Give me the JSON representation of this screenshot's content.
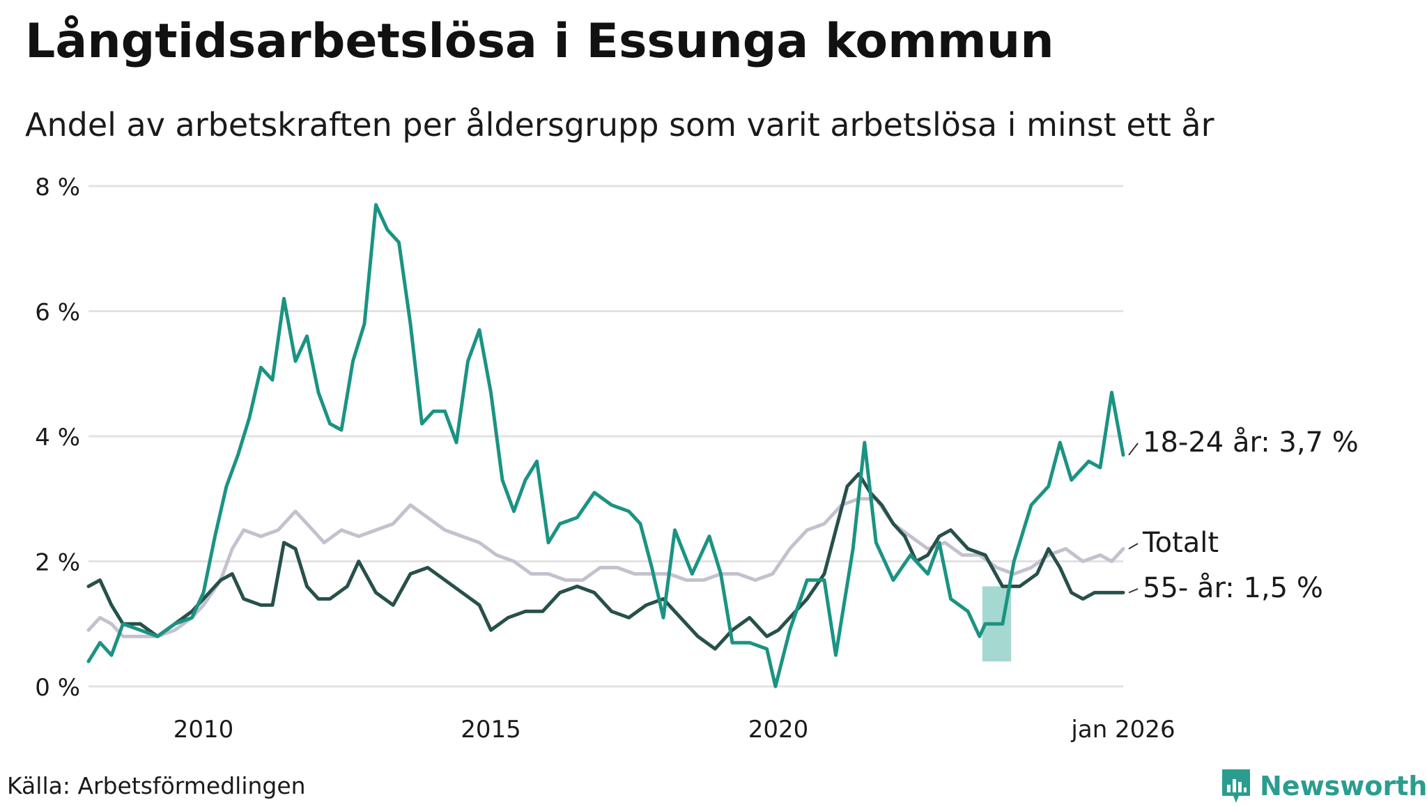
{
  "title": "Långtidsarbetslösa i Essunga kommun",
  "subtitle": "Andel av arbetskraften per åldersgrupp som varit arbetslösa i minst ett år",
  "source": "Källa: Arbetsförmedlingen",
  "brand": {
    "name": "Newsworthy",
    "icon": "bar-chart-icon",
    "color": "#2a9d8f"
  },
  "chart_data": {
    "type": "line",
    "title": "Långtidsarbetslösa i Essunga kommun",
    "xlabel": "",
    "ylabel": "",
    "ylim": [
      0,
      8
    ],
    "xlim": [
      2008.0,
      2026.0
    ],
    "yticks": [
      0,
      2,
      4,
      6,
      8
    ],
    "ytick_labels": [
      "0 %",
      "2 %",
      "4 %",
      "6 %",
      "8 %"
    ],
    "xticks": [
      2010,
      2015,
      2020,
      2026
    ],
    "xtick_labels": [
      "2010",
      "2015",
      "2020",
      "jan 2026"
    ],
    "grid": true,
    "series": [
      {
        "name": "Totalt",
        "label": "Totalt",
        "color": "#c4c1cf",
        "points": [
          [
            2008.0,
            0.9
          ],
          [
            2008.2,
            1.1
          ],
          [
            2008.4,
            1.0
          ],
          [
            2008.6,
            0.8
          ],
          [
            2008.9,
            0.8
          ],
          [
            2009.2,
            0.8
          ],
          [
            2009.5,
            0.9
          ],
          [
            2009.8,
            1.1
          ],
          [
            2010.0,
            1.3
          ],
          [
            2010.3,
            1.7
          ],
          [
            2010.5,
            2.2
          ],
          [
            2010.7,
            2.5
          ],
          [
            2011.0,
            2.4
          ],
          [
            2011.3,
            2.5
          ],
          [
            2011.6,
            2.8
          ],
          [
            2011.9,
            2.5
          ],
          [
            2012.1,
            2.3
          ],
          [
            2012.4,
            2.5
          ],
          [
            2012.7,
            2.4
          ],
          [
            2013.0,
            2.5
          ],
          [
            2013.3,
            2.6
          ],
          [
            2013.6,
            2.9
          ],
          [
            2013.9,
            2.7
          ],
          [
            2014.2,
            2.5
          ],
          [
            2014.5,
            2.4
          ],
          [
            2014.8,
            2.3
          ],
          [
            2015.1,
            2.1
          ],
          [
            2015.4,
            2.0
          ],
          [
            2015.7,
            1.8
          ],
          [
            2016.0,
            1.8
          ],
          [
            2016.3,
            1.7
          ],
          [
            2016.6,
            1.7
          ],
          [
            2016.9,
            1.9
          ],
          [
            2017.2,
            1.9
          ],
          [
            2017.5,
            1.8
          ],
          [
            2017.8,
            1.8
          ],
          [
            2018.1,
            1.8
          ],
          [
            2018.4,
            1.7
          ],
          [
            2018.7,
            1.7
          ],
          [
            2019.0,
            1.8
          ],
          [
            2019.3,
            1.8
          ],
          [
            2019.6,
            1.7
          ],
          [
            2019.9,
            1.8
          ],
          [
            2020.2,
            2.2
          ],
          [
            2020.5,
            2.5
          ],
          [
            2020.8,
            2.6
          ],
          [
            2021.1,
            2.9
          ],
          [
            2021.4,
            3.0
          ],
          [
            2021.7,
            3.0
          ],
          [
            2022.0,
            2.6
          ],
          [
            2022.3,
            2.4
          ],
          [
            2022.6,
            2.2
          ],
          [
            2022.9,
            2.3
          ],
          [
            2023.2,
            2.1
          ],
          [
            2023.5,
            2.1
          ],
          [
            2023.8,
            1.9
          ],
          [
            2024.1,
            1.8
          ],
          [
            2024.4,
            1.9
          ],
          [
            2024.7,
            2.1
          ],
          [
            2025.0,
            2.2
          ],
          [
            2025.3,
            2.0
          ],
          [
            2025.6,
            2.1
          ],
          [
            2025.8,
            2.0
          ],
          [
            2026.0,
            2.2
          ]
        ]
      },
      {
        "name": "55- år",
        "label": "55- år: 1,5 %",
        "color": "#27504a",
        "points": [
          [
            2008.0,
            1.6
          ],
          [
            2008.2,
            1.7
          ],
          [
            2008.4,
            1.3
          ],
          [
            2008.6,
            1.0
          ],
          [
            2008.9,
            1.0
          ],
          [
            2009.2,
            0.8
          ],
          [
            2009.5,
            1.0
          ],
          [
            2009.8,
            1.2
          ],
          [
            2010.0,
            1.4
          ],
          [
            2010.3,
            1.7
          ],
          [
            2010.5,
            1.8
          ],
          [
            2010.7,
            1.4
          ],
          [
            2011.0,
            1.3
          ],
          [
            2011.2,
            1.3
          ],
          [
            2011.4,
            2.3
          ],
          [
            2011.6,
            2.2
          ],
          [
            2011.8,
            1.6
          ],
          [
            2012.0,
            1.4
          ],
          [
            2012.2,
            1.4
          ],
          [
            2012.5,
            1.6
          ],
          [
            2012.7,
            2.0
          ],
          [
            2013.0,
            1.5
          ],
          [
            2013.3,
            1.3
          ],
          [
            2013.6,
            1.8
          ],
          [
            2013.9,
            1.9
          ],
          [
            2014.2,
            1.7
          ],
          [
            2014.5,
            1.5
          ],
          [
            2014.8,
            1.3
          ],
          [
            2015.0,
            0.9
          ],
          [
            2015.3,
            1.1
          ],
          [
            2015.6,
            1.2
          ],
          [
            2015.9,
            1.2
          ],
          [
            2016.2,
            1.5
          ],
          [
            2016.5,
            1.6
          ],
          [
            2016.8,
            1.5
          ],
          [
            2017.1,
            1.2
          ],
          [
            2017.4,
            1.1
          ],
          [
            2017.7,
            1.3
          ],
          [
            2018.0,
            1.4
          ],
          [
            2018.3,
            1.1
          ],
          [
            2018.6,
            0.8
          ],
          [
            2018.9,
            0.6
          ],
          [
            2019.2,
            0.9
          ],
          [
            2019.5,
            1.1
          ],
          [
            2019.8,
            0.8
          ],
          [
            2020.0,
            0.9
          ],
          [
            2020.2,
            1.1
          ],
          [
            2020.5,
            1.4
          ],
          [
            2020.8,
            1.8
          ],
          [
            2021.0,
            2.5
          ],
          [
            2021.2,
            3.2
          ],
          [
            2021.4,
            3.4
          ],
          [
            2021.6,
            3.1
          ],
          [
            2021.8,
            2.9
          ],
          [
            2022.0,
            2.6
          ],
          [
            2022.2,
            2.4
          ],
          [
            2022.4,
            2.0
          ],
          [
            2022.6,
            2.1
          ],
          [
            2022.8,
            2.4
          ],
          [
            2023.0,
            2.5
          ],
          [
            2023.3,
            2.2
          ],
          [
            2023.6,
            2.1
          ],
          [
            2023.9,
            1.6
          ],
          [
            2024.2,
            1.6
          ],
          [
            2024.5,
            1.8
          ],
          [
            2024.7,
            2.2
          ],
          [
            2024.9,
            1.9
          ],
          [
            2025.1,
            1.5
          ],
          [
            2025.3,
            1.4
          ],
          [
            2025.5,
            1.5
          ],
          [
            2025.7,
            1.5
          ],
          [
            2026.0,
            1.5
          ]
        ]
      },
      {
        "name": "18-24 år",
        "label": "18-24 år: 3,7 %",
        "color": "#1b9383",
        "points": [
          [
            2008.0,
            0.4
          ],
          [
            2008.2,
            0.7
          ],
          [
            2008.4,
            0.5
          ],
          [
            2008.6,
            1.0
          ],
          [
            2008.9,
            0.9
          ],
          [
            2009.2,
            0.8
          ],
          [
            2009.5,
            1.0
          ],
          [
            2009.8,
            1.1
          ],
          [
            2010.0,
            1.5
          ],
          [
            2010.2,
            2.4
          ],
          [
            2010.4,
            3.2
          ],
          [
            2010.6,
            3.7
          ],
          [
            2010.8,
            4.3
          ],
          [
            2011.0,
            5.1
          ],
          [
            2011.2,
            4.9
          ],
          [
            2011.4,
            6.2
          ],
          [
            2011.6,
            5.2
          ],
          [
            2011.8,
            5.6
          ],
          [
            2012.0,
            4.7
          ],
          [
            2012.2,
            4.2
          ],
          [
            2012.4,
            4.1
          ],
          [
            2012.6,
            5.2
          ],
          [
            2012.8,
            5.8
          ],
          [
            2013.0,
            7.7
          ],
          [
            2013.2,
            7.3
          ],
          [
            2013.4,
            7.1
          ],
          [
            2013.6,
            5.8
          ],
          [
            2013.8,
            4.2
          ],
          [
            2014.0,
            4.4
          ],
          [
            2014.2,
            4.4
          ],
          [
            2014.4,
            3.9
          ],
          [
            2014.6,
            5.2
          ],
          [
            2014.8,
            5.7
          ],
          [
            2015.0,
            4.7
          ],
          [
            2015.2,
            3.3
          ],
          [
            2015.4,
            2.8
          ],
          [
            2015.6,
            3.3
          ],
          [
            2015.8,
            3.6
          ],
          [
            2016.0,
            2.3
          ],
          [
            2016.2,
            2.6
          ],
          [
            2016.5,
            2.7
          ],
          [
            2016.8,
            3.1
          ],
          [
            2017.1,
            2.9
          ],
          [
            2017.4,
            2.8
          ],
          [
            2017.6,
            2.6
          ],
          [
            2017.8,
            1.9
          ],
          [
            2018.0,
            1.1
          ],
          [
            2018.2,
            2.5
          ],
          [
            2018.5,
            1.8
          ],
          [
            2018.8,
            2.4
          ],
          [
            2019.0,
            1.8
          ],
          [
            2019.2,
            0.7
          ],
          [
            2019.5,
            0.7
          ],
          [
            2019.8,
            0.6
          ],
          [
            2019.95,
            0.0
          ],
          [
            2020.2,
            0.9
          ],
          [
            2020.5,
            1.7
          ],
          [
            2020.8,
            1.7
          ],
          [
            2021.0,
            0.5
          ],
          [
            2021.3,
            2.2
          ],
          [
            2021.5,
            3.9
          ],
          [
            2021.7,
            2.3
          ],
          [
            2022.0,
            1.7
          ],
          [
            2022.3,
            2.1
          ],
          [
            2022.6,
            1.8
          ],
          [
            2022.8,
            2.3
          ],
          [
            2023.0,
            1.4
          ],
          [
            2023.3,
            1.2
          ],
          [
            2023.5,
            0.8
          ],
          [
            2023.6,
            1.0
          ],
          [
            2023.9,
            1.0
          ],
          [
            2024.1,
            2.0
          ],
          [
            2024.4,
            2.9
          ],
          [
            2024.7,
            3.2
          ],
          [
            2024.9,
            3.9
          ],
          [
            2025.1,
            3.3
          ],
          [
            2025.4,
            3.6
          ],
          [
            2025.6,
            3.5
          ],
          [
            2025.8,
            4.7
          ],
          [
            2026.0,
            3.7
          ]
        ]
      }
    ],
    "uncertainty_band": {
      "series": "18-24 år",
      "x": [
        2023.55,
        2024.05
      ],
      "upper": 1.6,
      "lower": 0.4
    }
  }
}
